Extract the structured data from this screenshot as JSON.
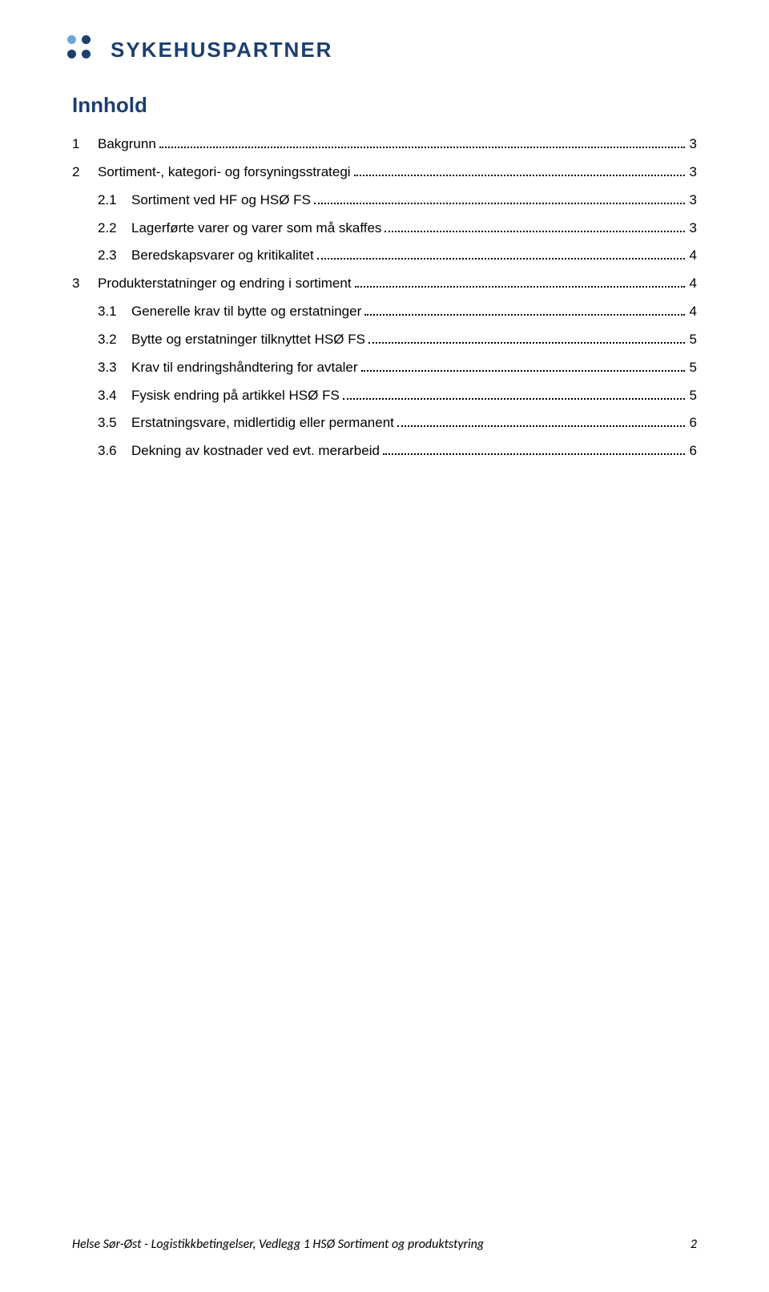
{
  "brand": {
    "name": "SYKEHUSPARTNER",
    "color": "#1C3F6E",
    "dot_color_accent": "#6CA6D9",
    "dot_color_main": "#1C3F6E"
  },
  "toc": {
    "title": "Innhold",
    "title_color": "#1C3F6E",
    "entries": [
      {
        "level": 1,
        "num": "1",
        "label": "Bakgrunn",
        "page": "3"
      },
      {
        "level": 1,
        "num": "2",
        "label": "Sortiment-, kategori- og forsyningsstrategi",
        "page": "3"
      },
      {
        "level": 2,
        "num": "2.1",
        "label": "Sortiment ved HF og HSØ FS",
        "page": "3"
      },
      {
        "level": 2,
        "num": "2.2",
        "label": "Lagerførte varer og varer som må skaffes",
        "page": "3"
      },
      {
        "level": 2,
        "num": "2.3",
        "label": "Beredskapsvarer og kritikalitet",
        "page": "4"
      },
      {
        "level": 1,
        "num": "3",
        "label": "Produkterstatninger og endring i sortiment",
        "page": "4"
      },
      {
        "level": 2,
        "num": "3.1",
        "label": "Generelle krav til bytte og erstatninger",
        "page": "4"
      },
      {
        "level": 2,
        "num": "3.2",
        "label": "Bytte og erstatninger tilknyttet HSØ FS",
        "page": "5"
      },
      {
        "level": 2,
        "num": "3.3",
        "label": "Krav til endringshåndtering for avtaler",
        "page": "5"
      },
      {
        "level": 2,
        "num": "3.4",
        "label": "Fysisk endring på artikkel HSØ FS",
        "page": "5"
      },
      {
        "level": 2,
        "num": "3.5",
        "label": "Erstatningsvare, midlertidig eller permanent",
        "page": "6"
      },
      {
        "level": 2,
        "num": "3.6",
        "label": "Dekning av kostnader ved evt. merarbeid",
        "page": "6"
      }
    ]
  },
  "footer": {
    "text": "Helse Sør-Øst - Logistikkbetingelser, Vedlegg 1 HSØ Sortiment og produktstyring",
    "page_number": "2"
  }
}
